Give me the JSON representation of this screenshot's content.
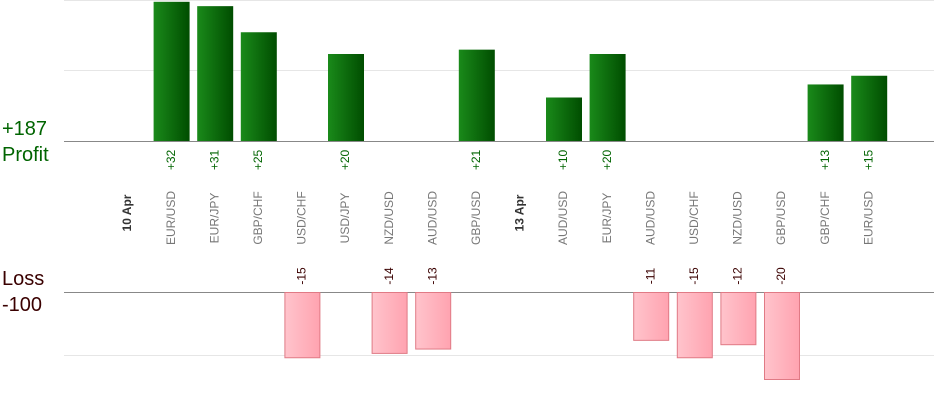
{
  "totals": {
    "profit_value": "+187",
    "profit_label": "Profit",
    "loss_label": "Loss",
    "loss_value": "-100"
  },
  "colors": {
    "profit_bar_dark": "#004d00",
    "profit_bar_light": "#1a8a1a",
    "loss_bar": "#ffb6c1",
    "loss_bar_border": "#e07a85",
    "profit_text": "#006400",
    "loss_text": "#3a0000",
    "label_gray": "#777777",
    "grid": "#e6e6e6",
    "axis": "#888888"
  },
  "chart_data": {
    "type": "bar",
    "ylim_profit": [
      0,
      35
    ],
    "ylim_loss": [
      0,
      -20
    ],
    "grid": true,
    "items": [
      {
        "kind": "date",
        "label": "10 Apr"
      },
      {
        "kind": "trade",
        "pair": "EUR/USD",
        "value": 32,
        "label": "+32"
      },
      {
        "kind": "trade",
        "pair": "EUR/JPY",
        "value": 31,
        "label": "+31"
      },
      {
        "kind": "trade",
        "pair": "GBP/CHF",
        "value": 25,
        "label": "+25"
      },
      {
        "kind": "trade",
        "pair": "USD/CHF",
        "value": -15,
        "label": "-15"
      },
      {
        "kind": "trade",
        "pair": "USD/JPY",
        "value": 20,
        "label": "+20"
      },
      {
        "kind": "trade",
        "pair": "NZD/USD",
        "value": -14,
        "label": "-14"
      },
      {
        "kind": "trade",
        "pair": "AUD/USD",
        "value": -13,
        "label": "-13"
      },
      {
        "kind": "trade",
        "pair": "GBP/USD",
        "value": 21,
        "label": "+21"
      },
      {
        "kind": "date",
        "label": "13 Apr"
      },
      {
        "kind": "trade",
        "pair": "AUD/USD",
        "value": 10,
        "label": "+10"
      },
      {
        "kind": "trade",
        "pair": "EUR/JPY",
        "value": 20,
        "label": "+20"
      },
      {
        "kind": "trade",
        "pair": "AUD/USD",
        "value": -11,
        "label": "-11"
      },
      {
        "kind": "trade",
        "pair": "USD/CHF",
        "value": -15,
        "label": "-15"
      },
      {
        "kind": "trade",
        "pair": "NZD/USD",
        "value": -12,
        "label": "-12"
      },
      {
        "kind": "trade",
        "pair": "GBP/USD",
        "value": -20,
        "label": "-20"
      },
      {
        "kind": "trade",
        "pair": "GBP/CHF",
        "value": 13,
        "label": "+13"
      },
      {
        "kind": "trade",
        "pair": "EUR/USD",
        "value": 15,
        "label": "+15"
      }
    ]
  }
}
